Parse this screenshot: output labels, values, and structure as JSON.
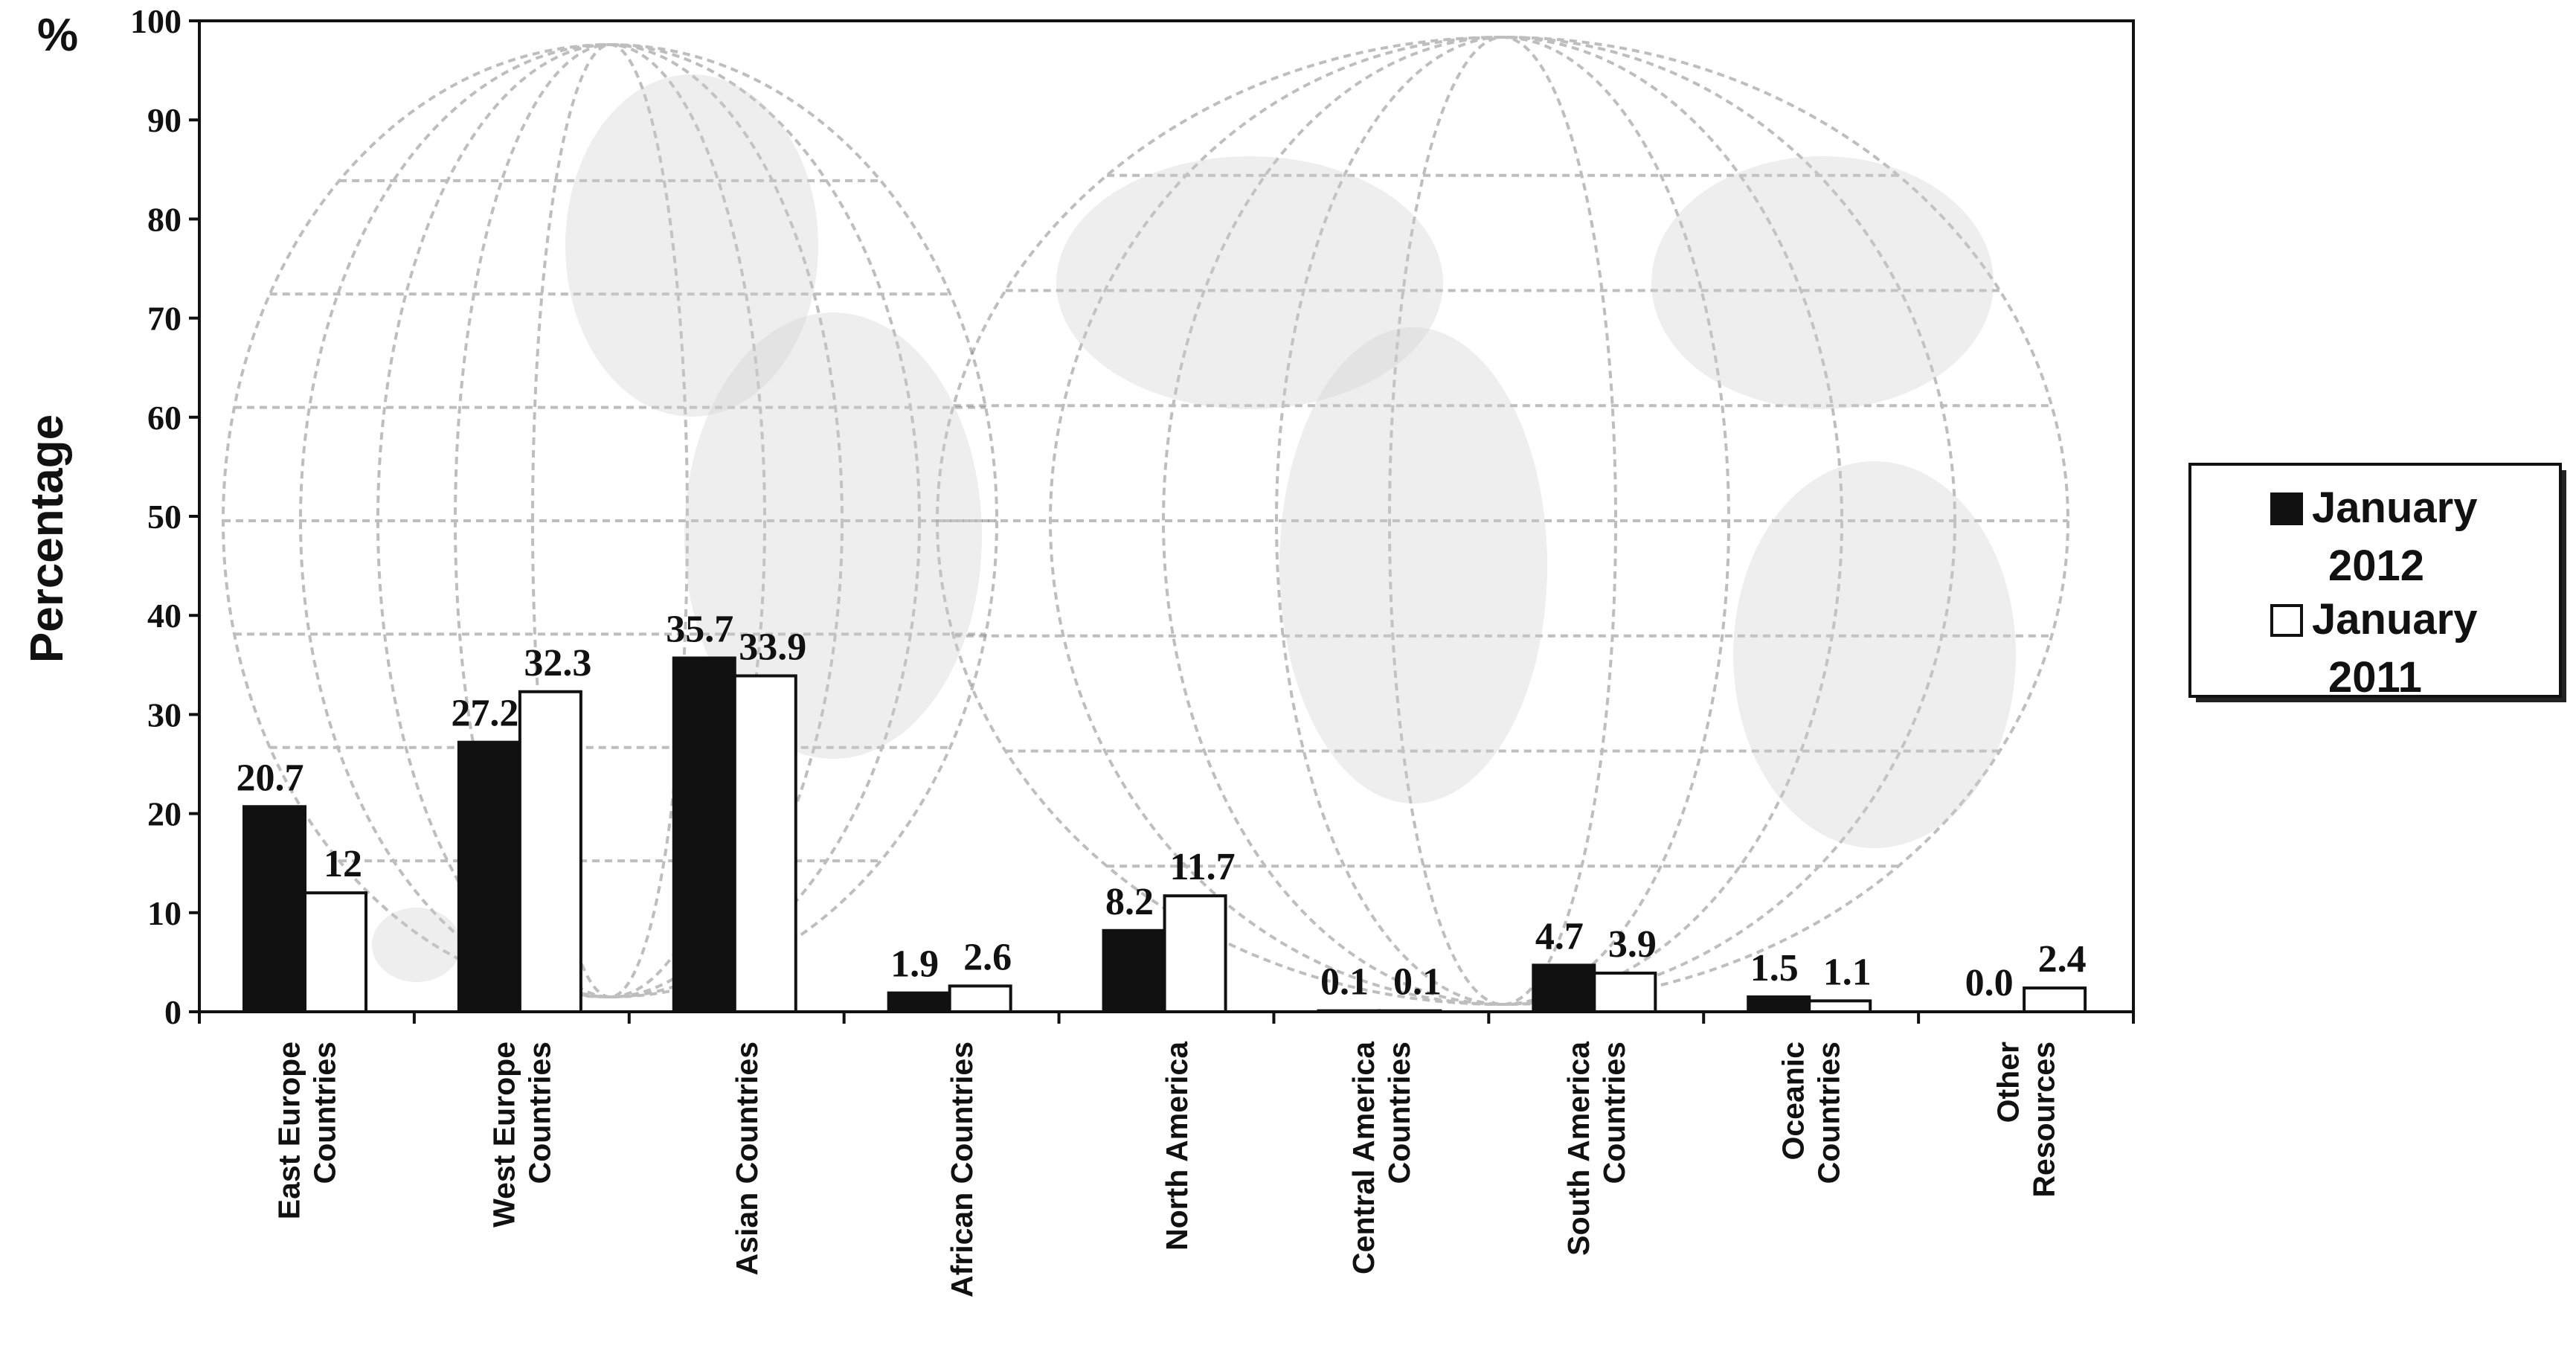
{
  "chart_data": {
    "type": "bar",
    "title": "",
    "unit_label": "%",
    "ylabel": "Percentage",
    "xlabel": "",
    "ylim": [
      0,
      100
    ],
    "yticks": [
      0,
      10,
      20,
      30,
      40,
      50,
      60,
      70,
      80,
      90,
      100
    ],
    "grid": false,
    "legend_position": "right",
    "background": "world-map",
    "categories": [
      [
        "East Europe",
        "Countries"
      ],
      [
        "West Europe",
        "Countries"
      ],
      [
        "Asian Countries"
      ],
      [
        "African Countries"
      ],
      [
        "North America"
      ],
      [
        "Central America",
        "Countries"
      ],
      [
        "South America",
        "Countries"
      ],
      [
        "Oceanic",
        "Countries"
      ],
      [
        "Other",
        "Resources"
      ]
    ],
    "series": [
      {
        "name": [
          "January",
          "2012"
        ],
        "fill": "#111111",
        "values": [
          20.7,
          27.2,
          35.7,
          1.9,
          8.2,
          0.1,
          4.7,
          1.5,
          0.0
        ],
        "labels": [
          "20.7",
          "27.2",
          "35.7",
          "1.9",
          "8.2",
          "0.1",
          "4.7",
          "1.5",
          "0.0"
        ]
      },
      {
        "name": [
          "January",
          "2011"
        ],
        "fill": "#ffffff",
        "values": [
          12,
          32.3,
          33.9,
          2.6,
          11.7,
          0.1,
          3.9,
          1.1,
          2.4
        ],
        "labels": [
          "12",
          "32.3",
          "33.9",
          "2.6",
          "11.7",
          "0.1",
          "3.9",
          "1.1",
          "2.4"
        ]
      }
    ]
  }
}
